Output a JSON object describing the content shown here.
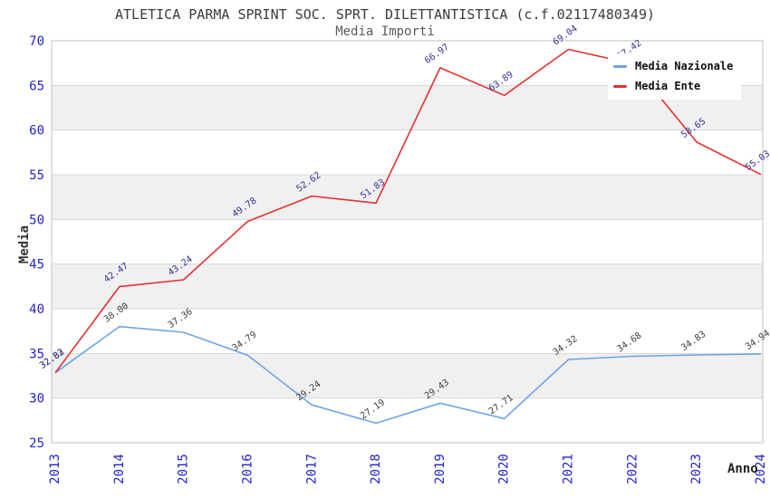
{
  "chart_data": {
    "type": "line",
    "title": "ATLETICA PARMA SPRINT SOC. SPRT. DILETTANTISTICA (c.f.02117480349)",
    "subtitle": "Media Importi",
    "xlabel": "Anno",
    "ylabel": "Media",
    "x": [
      2013,
      2014,
      2015,
      2016,
      2017,
      2018,
      2019,
      2020,
      2021,
      2022,
      2023,
      2024
    ],
    "ylim": [
      25,
      70
    ],
    "ytick_step": 5,
    "grid": true,
    "legend_position": "top-right",
    "series": [
      {
        "name": "Media Nazionale",
        "id": "media-nazionale",
        "color": "#6da4e3",
        "label_color": "#3d3d3d",
        "values": [
          32.83,
          38.0,
          37.36,
          34.79,
          29.24,
          27.19,
          29.43,
          27.71,
          34.32,
          34.68,
          34.83,
          34.94
        ]
      },
      {
        "name": "Media Ente",
        "id": "media-ente",
        "color": "#e53030",
        "label_color": "#32329b",
        "values": [
          32.82,
          42.47,
          43.24,
          49.78,
          52.62,
          51.83,
          66.97,
          63.89,
          69.04,
          67.42,
          58.65,
          55.03
        ]
      }
    ],
    "colors": {
      "axis_tick": "#2323cc",
      "gridline": "#d8d8d8",
      "plot_border": "#c0c0c0",
      "band_fill": "#f0f0f0",
      "title_text": "#3c3c3c"
    }
  }
}
